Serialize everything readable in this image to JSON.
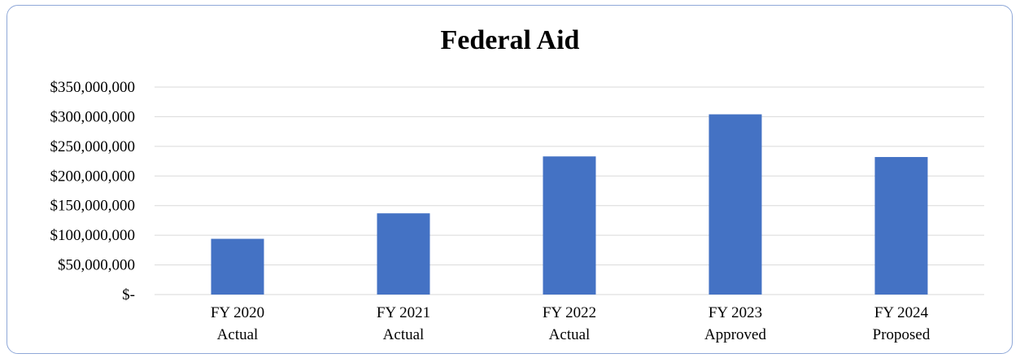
{
  "chart_data": {
    "type": "bar",
    "title": "Federal Aid",
    "categories": [
      [
        "FY 2020",
        "Actual"
      ],
      [
        "FY 2021",
        "Actual"
      ],
      [
        "FY 2022",
        "Actual"
      ],
      [
        "FY 2023",
        "Approved"
      ],
      [
        "FY 2024",
        "Proposed"
      ]
    ],
    "values": [
      94000000,
      137000000,
      233000000,
      304000000,
      232000000
    ],
    "ylim": [
      0,
      350000000
    ],
    "yticks": [
      0,
      50000000,
      100000000,
      150000000,
      200000000,
      250000000,
      300000000,
      350000000
    ],
    "ytick_labels": [
      "$-",
      "$50,000,000",
      "$100,000,000",
      "$150,000,000",
      "$200,000,000",
      "$250,000,000",
      "$300,000,000",
      "$350,000,000"
    ],
    "xlabel": "",
    "ylabel": "",
    "grid": true,
    "legend": "none",
    "bar_color": "#4472c4",
    "grid_color": "#d9d9d9"
  }
}
